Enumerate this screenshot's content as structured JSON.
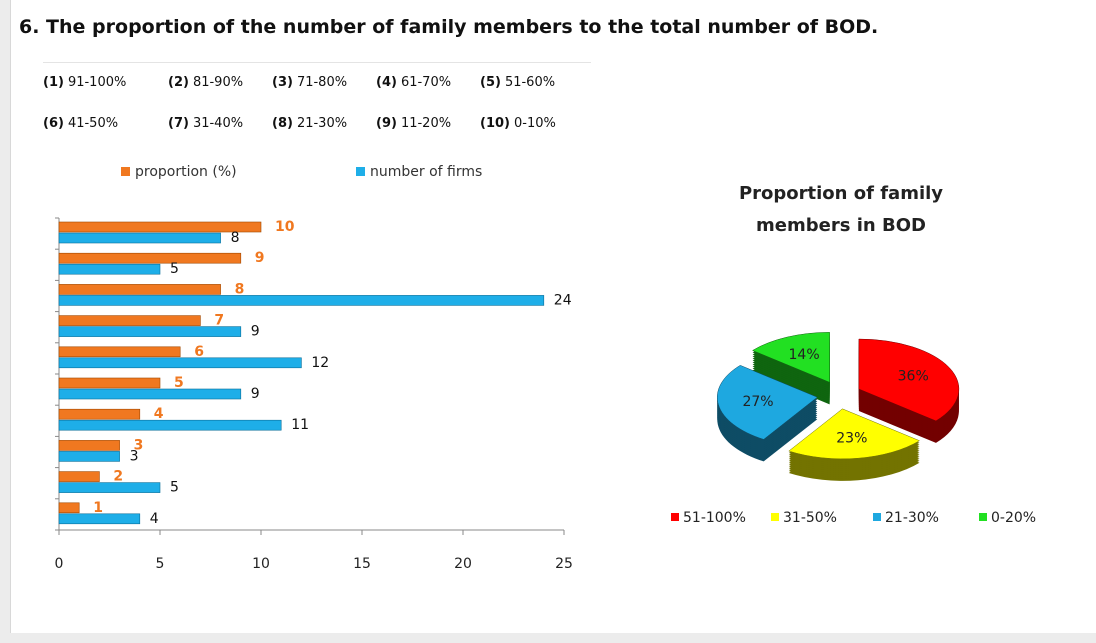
{
  "heading": "6. The proportion of the number of family members to the total number of BOD.",
  "key": [
    {
      "num": "(1)",
      "range": "91-100%"
    },
    {
      "num": "(2)",
      "range": "81-90%"
    },
    {
      "num": "(3)",
      "range": "71-80%"
    },
    {
      "num": "(4)",
      "range": "61-70%"
    },
    {
      "num": "(5)",
      "range": "51-60%"
    },
    {
      "num": "(6)",
      "range": "41-50%"
    },
    {
      "num": "(7)",
      "range": "31-40%"
    },
    {
      "num": "(8)",
      "range": "21-30%"
    },
    {
      "num": "(9)",
      "range": "11-20%"
    },
    {
      "num": "(10)",
      "range": "0-10%"
    }
  ],
  "chart_data": [
    {
      "type": "bar",
      "orientation": "horizontal",
      "legend": "top",
      "series": [
        {
          "name": "proportion (%)",
          "color": "#f07820",
          "values": [
            10,
            9,
            8,
            7,
            6,
            5,
            4,
            3,
            2,
            1
          ]
        },
        {
          "name": "number of firms",
          "color": "#1eaee8",
          "values": [
            8,
            5,
            24,
            9,
            12,
            9,
            11,
            3,
            5,
            4
          ]
        }
      ],
      "xlim": [
        0,
        25
      ],
      "xticks": [
        0,
        5,
        10,
        15,
        20,
        25
      ]
    },
    {
      "type": "pie",
      "title": "Proportion of family members in BOD",
      "legend": "bottom",
      "categories": [
        "51-100%",
        "31-50%",
        "21-30%",
        "0-20%"
      ],
      "values": [
        36,
        23,
        27,
        14
      ],
      "value_labels": [
        "36%",
        "23%",
        "27%",
        "14%"
      ],
      "colors": [
        "#ff0000",
        "#ffff00",
        "#1ea8e0",
        "#22e022"
      ]
    }
  ]
}
